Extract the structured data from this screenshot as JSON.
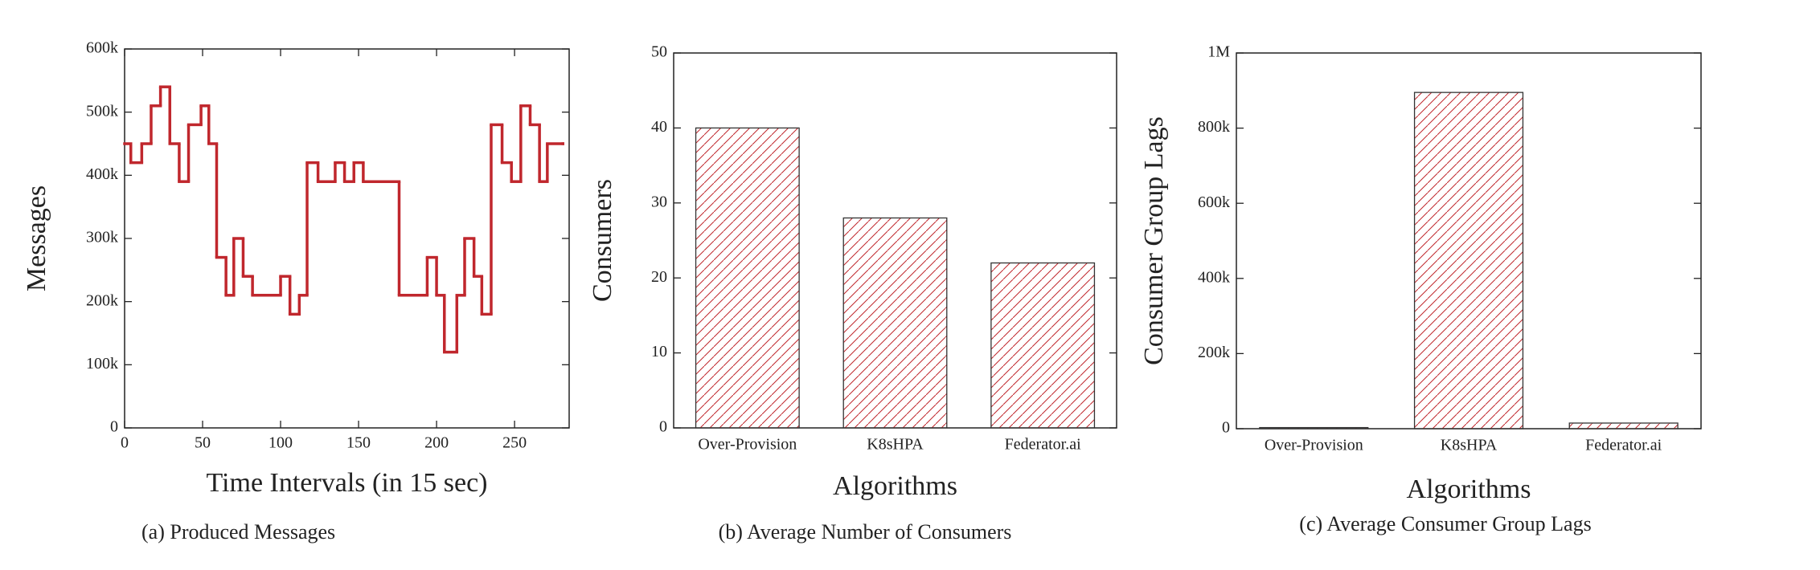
{
  "chart_data": [
    {
      "type": "line",
      "caption": "(a) Produced Messages",
      "x_label": "Time Intervals (in 15 sec)",
      "y_label": "Messages",
      "step": "post",
      "color": "#c0272d",
      "x": [
        0,
        4,
        11,
        17,
        23,
        29,
        35,
        41,
        49,
        54,
        59,
        65,
        70,
        76,
        82,
        100,
        106,
        112,
        117,
        124,
        135,
        141,
        147,
        153,
        176,
        194,
        200,
        205,
        213,
        218,
        224,
        229,
        235,
        242,
        248,
        254,
        260,
        266,
        271,
        281
      ],
      "values": [
        450000,
        420000,
        450000,
        510000,
        540000,
        450000,
        390000,
        480000,
        510000,
        450000,
        270000,
        210000,
        300000,
        240000,
        210000,
        240000,
        180000,
        210000,
        420000,
        390000,
        420000,
        390000,
        420000,
        390000,
        210000,
        270000,
        210000,
        120000,
        210000,
        300000,
        240000,
        180000,
        480000,
        420000,
        390000,
        510000,
        480000,
        390000,
        450000,
        450000
      ],
      "xlim": [
        0,
        285
      ],
      "xticks": [
        0,
        50,
        100,
        150,
        200,
        250
      ],
      "ylim": [
        0,
        600000
      ],
      "yticks": [
        0,
        {
          "value": 100000,
          "label": "100k"
        },
        {
          "value": 200000,
          "label": "200k"
        },
        {
          "value": 300000,
          "label": "300k"
        },
        {
          "value": 400000,
          "label": "400k"
        },
        {
          "value": 500000,
          "label": "500k"
        },
        {
          "value": 600000,
          "label": "600k"
        }
      ]
    },
    {
      "type": "bar",
      "caption": "(b) Average Number of Consumers",
      "x_label": "Algorithms",
      "y_label": "Consumers",
      "categories": [
        "Over-Provision",
        "K8sHPA",
        "Federator.ai"
      ],
      "values": [
        40,
        28,
        22
      ],
      "color": "#c0272d",
      "ylim": [
        0,
        50
      ],
      "yticks": [
        0,
        10,
        20,
        30,
        40,
        50
      ]
    },
    {
      "type": "bar",
      "caption": "(c) Average Consumer Group Lags",
      "x_label": "Algorithms",
      "y_label": "Consumer Group Lags",
      "categories": [
        "Over-Provision",
        "K8sHPA",
        "Federator.ai"
      ],
      "values": [
        3000,
        895000,
        15000
      ],
      "color": "#c0272d",
      "ylim": [
        0,
        1000000
      ],
      "yticks": [
        0,
        {
          "value": 200000,
          "label": "200k"
        },
        {
          "value": 400000,
          "label": "400k"
        },
        {
          "value": 600000,
          "label": "600k"
        },
        {
          "value": 800000,
          "label": "800k"
        },
        {
          "value": 1000000,
          "label": "1M"
        }
      ]
    }
  ]
}
